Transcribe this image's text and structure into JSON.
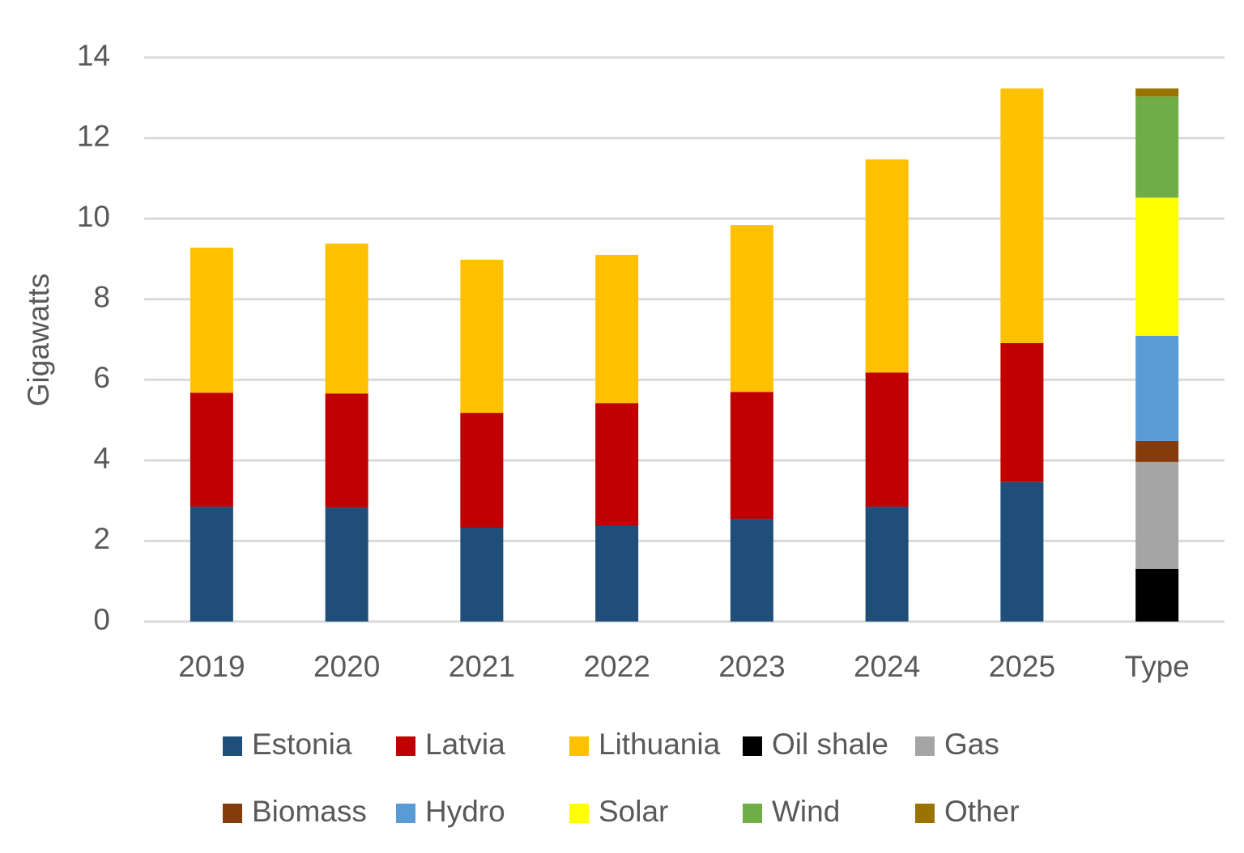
{
  "chart_data": {
    "type": "stacked_bar",
    "y_label": "Gigawatts",
    "categories": [
      "2019",
      "2020",
      "2021",
      "2022",
      "2023",
      "2024",
      "2025",
      "Type"
    ],
    "series": [
      {
        "name": "Estonia",
        "color": "#1f4e79",
        "values": [
          2.85,
          2.83,
          2.33,
          2.39,
          2.55,
          2.85,
          3.47,
          null
        ]
      },
      {
        "name": "Latvia",
        "color": "#c00000",
        "values": [
          2.83,
          2.83,
          2.85,
          3.03,
          3.15,
          3.33,
          3.44,
          null
        ]
      },
      {
        "name": "Lithuania",
        "color": "#ffc000",
        "values": [
          3.6,
          3.72,
          3.8,
          3.68,
          4.14,
          5.29,
          6.32,
          null
        ]
      },
      {
        "name": "Oil shale",
        "color": "#000000",
        "values": [
          null,
          null,
          null,
          null,
          null,
          null,
          null,
          1.31
        ]
      },
      {
        "name": "Gas",
        "color": "#a5a5a5",
        "values": [
          null,
          null,
          null,
          null,
          null,
          null,
          null,
          2.65
        ]
      },
      {
        "name": "Biomass",
        "color": "#843c0c",
        "values": [
          null,
          null,
          null,
          null,
          null,
          null,
          null,
          0.52
        ]
      },
      {
        "name": "Hydro",
        "color": "#5b9bd5",
        "values": [
          null,
          null,
          null,
          null,
          null,
          null,
          null,
          2.61
        ]
      },
      {
        "name": "Solar",
        "color": "#ffff00",
        "values": [
          null,
          null,
          null,
          null,
          null,
          null,
          null,
          3.43
        ]
      },
      {
        "name": "Wind",
        "color": "#70ad47",
        "values": [
          null,
          null,
          null,
          null,
          null,
          null,
          null,
          2.51
        ]
      },
      {
        "name": "Other",
        "color": "#997300",
        "values": [
          null,
          null,
          null,
          null,
          null,
          null,
          null,
          0.2
        ]
      }
    ],
    "ylim": [
      0,
      14
    ],
    "yticks": [
      0,
      2,
      4,
      6,
      8,
      10,
      12,
      14
    ],
    "grid": true,
    "legend": "bottom"
  }
}
